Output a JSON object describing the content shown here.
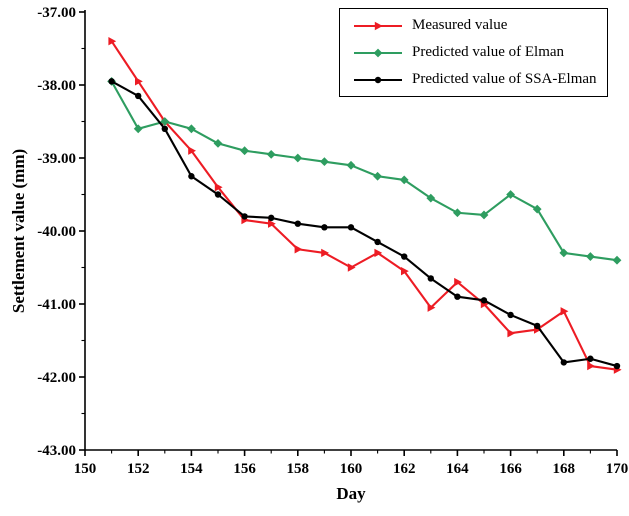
{
  "chart_data": {
    "type": "line",
    "title": "",
    "xlabel": "Day",
    "ylabel": "Settlement value (mm)",
    "xlim": [
      150,
      170
    ],
    "ylim": [
      -43,
      -37
    ],
    "grid": false,
    "legend_position": "top-right",
    "x_major_ticks": [
      150,
      152,
      154,
      156,
      158,
      160,
      162,
      164,
      166,
      168,
      170
    ],
    "y_major_ticks": [
      -43,
      -42,
      -41,
      -40,
      -39,
      -38,
      -37
    ],
    "x": [
      151,
      152,
      153,
      154,
      155,
      156,
      157,
      158,
      159,
      160,
      161,
      162,
      163,
      164,
      165,
      166,
      167,
      168,
      169,
      170
    ],
    "series": [
      {
        "name": "Measured value",
        "color": "#ed1c24",
        "marker": "triangle-right",
        "values": [
          -37.4,
          -37.95,
          -38.5,
          -38.9,
          -39.4,
          -39.85,
          -39.9,
          -40.25,
          -40.3,
          -40.5,
          -40.3,
          -40.55,
          -41.05,
          -40.7,
          -41.0,
          -41.4,
          -41.35,
          -41.1,
          -41.85,
          -41.9
        ]
      },
      {
        "name": "Predicted value of Elman",
        "color": "#2e9d60",
        "marker": "diamond",
        "values": [
          -37.95,
          -38.6,
          -38.5,
          -38.6,
          -38.8,
          -38.9,
          -38.95,
          -39.0,
          -39.05,
          -39.1,
          -39.25,
          -39.3,
          -39.55,
          -39.75,
          -39.78,
          -39.5,
          -39.7,
          -40.3,
          -40.35,
          -40.4
        ]
      },
      {
        "name": "Predicted value of SSA-Elman",
        "color": "#000000",
        "marker": "circle",
        "values": [
          -37.95,
          -38.15,
          -38.6,
          -39.25,
          -39.5,
          -39.8,
          -39.82,
          -39.9,
          -39.95,
          -39.95,
          -40.15,
          -40.35,
          -40.65,
          -40.9,
          -40.95,
          -41.15,
          -41.3,
          -41.8,
          -41.75,
          -41.85
        ]
      }
    ]
  }
}
